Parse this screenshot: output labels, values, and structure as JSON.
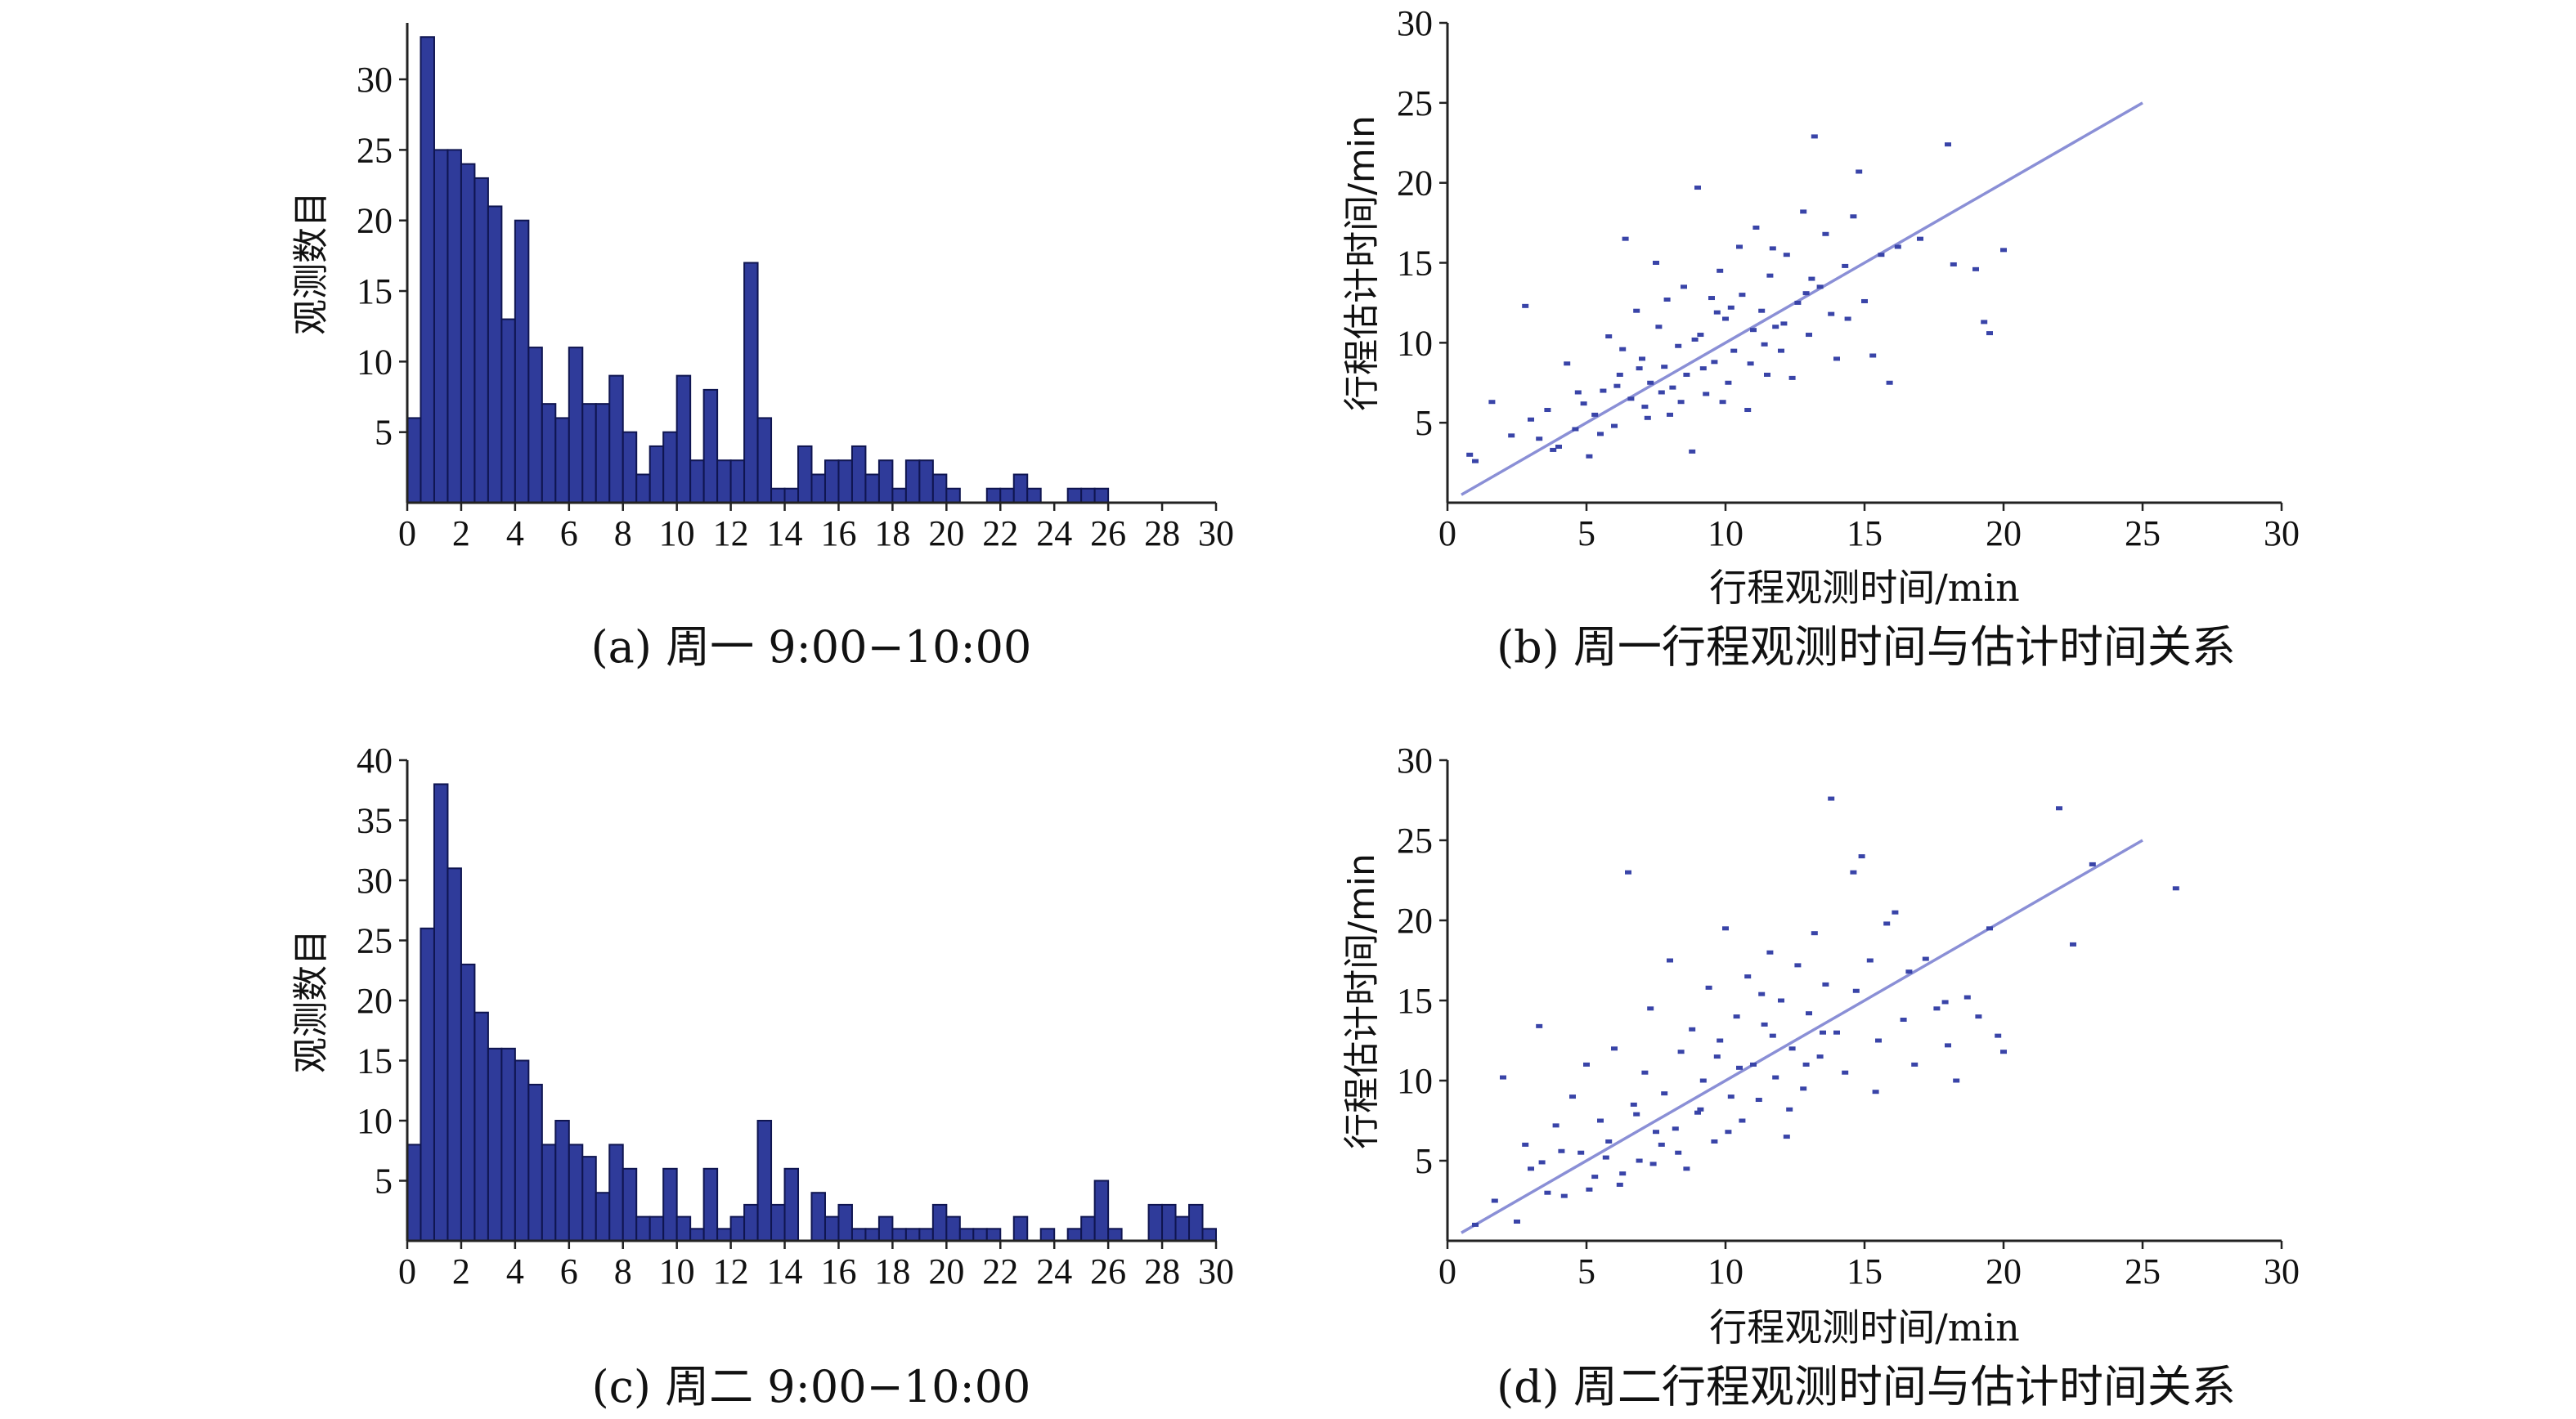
{
  "chart_data": [
    {
      "type": "bar",
      "id": "a",
      "caption": "(a) 周一 9:00−10:00",
      "ylabel": "观测数目",
      "xlabel": "",
      "xlim": [
        0,
        30
      ],
      "ylim": [
        0,
        34
      ],
      "xticks": [
        0,
        2,
        4,
        6,
        8,
        10,
        12,
        14,
        16,
        18,
        20,
        22,
        24,
        26,
        28,
        30
      ],
      "yticks": [
        5,
        10,
        15,
        20,
        25,
        30
      ],
      "bin_width": 0.5,
      "values": [
        6,
        33,
        25,
        25,
        24,
        23,
        21,
        13,
        20,
        11,
        7,
        6,
        11,
        7,
        7,
        9,
        5,
        2,
        4,
        5,
        9,
        3,
        8,
        3,
        3,
        17,
        6,
        1,
        1,
        4,
        2,
        3,
        3,
        4,
        2,
        3,
        1,
        3,
        3,
        2,
        1,
        0,
        0,
        1,
        1,
        2,
        1,
        0,
        0,
        1,
        1,
        1,
        0,
        0,
        0,
        0,
        0,
        0,
        0,
        0
      ]
    },
    {
      "type": "scatter",
      "id": "b",
      "caption": "(b) 周一行程观测时间与估计时间关系",
      "xlabel": "行程观测时间/min",
      "ylabel": "行程估计时间/min",
      "xlim": [
        0,
        30
      ],
      "ylim": [
        0,
        30
      ],
      "xticks": [
        0,
        5,
        10,
        15,
        20,
        25,
        30
      ],
      "yticks": [
        5,
        10,
        15,
        20,
        25,
        30
      ],
      "fit_line": [
        [
          0.5,
          0.5
        ],
        [
          25,
          25
        ]
      ],
      "points": [
        [
          0.8,
          3.0
        ],
        [
          1.0,
          2.6
        ],
        [
          1.6,
          6.3
        ],
        [
          2.3,
          4.2
        ],
        [
          2.8,
          12.3
        ],
        [
          3.0,
          5.2
        ],
        [
          3.3,
          4.0
        ],
        [
          3.6,
          5.8
        ],
        [
          4.0,
          3.5
        ],
        [
          4.3,
          8.7
        ],
        [
          4.6,
          4.6
        ],
        [
          4.9,
          6.2
        ],
        [
          5.1,
          2.9
        ],
        [
          5.3,
          5.5
        ],
        [
          5.6,
          7.0
        ],
        [
          5.8,
          10.4
        ],
        [
          6.0,
          4.8
        ],
        [
          6.2,
          8.0
        ],
        [
          6.4,
          16.5
        ],
        [
          6.6,
          6.5
        ],
        [
          6.8,
          12.0
        ],
        [
          7.0,
          9.0
        ],
        [
          7.1,
          6.0
        ],
        [
          7.3,
          7.5
        ],
        [
          7.5,
          15.0
        ],
        [
          7.6,
          11.0
        ],
        [
          7.8,
          8.5
        ],
        [
          8.0,
          5.5
        ],
        [
          8.1,
          7.2
        ],
        [
          8.3,
          9.8
        ],
        [
          8.5,
          13.5
        ],
        [
          8.6,
          8.0
        ],
        [
          8.8,
          3.2
        ],
        [
          9.0,
          19.7
        ],
        [
          9.1,
          10.5
        ],
        [
          9.3,
          6.8
        ],
        [
          9.5,
          12.8
        ],
        [
          9.6,
          8.8
        ],
        [
          9.8,
          14.5
        ],
        [
          10.0,
          11.5
        ],
        [
          10.1,
          7.5
        ],
        [
          10.3,
          9.5
        ],
        [
          10.5,
          16.0
        ],
        [
          10.6,
          13.0
        ],
        [
          10.8,
          5.8
        ],
        [
          11.0,
          10.8
        ],
        [
          11.1,
          17.2
        ],
        [
          11.3,
          12.0
        ],
        [
          11.5,
          8.0
        ],
        [
          11.6,
          14.2
        ],
        [
          11.8,
          11.0
        ],
        [
          12.0,
          9.5
        ],
        [
          12.2,
          15.5
        ],
        [
          12.4,
          7.8
        ],
        [
          12.6,
          12.5
        ],
        [
          12.8,
          18.2
        ],
        [
          13.0,
          10.5
        ],
        [
          13.2,
          22.9
        ],
        [
          13.4,
          13.5
        ],
        [
          13.6,
          16.8
        ],
        [
          13.8,
          11.8
        ],
        [
          14.0,
          9.0
        ],
        [
          14.3,
          14.8
        ],
        [
          14.6,
          17.9
        ],
        [
          14.8,
          20.7
        ],
        [
          15.0,
          12.6
        ],
        [
          15.3,
          9.2
        ],
        [
          15.6,
          15.5
        ],
        [
          15.9,
          7.5
        ],
        [
          16.2,
          16.0
        ],
        [
          17.0,
          16.5
        ],
        [
          18.0,
          22.4
        ],
        [
          18.2,
          14.9
        ],
        [
          19.0,
          14.6
        ],
        [
          19.3,
          11.3
        ],
        [
          19.5,
          10.6
        ],
        [
          20.0,
          15.8
        ],
        [
          6.1,
          7.3
        ],
        [
          7.2,
          5.3
        ],
        [
          8.4,
          6.3
        ],
        [
          9.2,
          8.4
        ],
        [
          10.2,
          12.2
        ],
        [
          11.4,
          9.9
        ],
        [
          12.1,
          11.2
        ],
        [
          13.1,
          14.0
        ],
        [
          6.9,
          8.4
        ],
        [
          7.7,
          6.9
        ],
        [
          8.9,
          10.2
        ],
        [
          9.7,
          11.9
        ],
        [
          10.9,
          8.7
        ],
        [
          5.5,
          4.3
        ],
        [
          4.7,
          6.9
        ],
        [
          3.8,
          3.3
        ],
        [
          6.3,
          9.6
        ],
        [
          7.9,
          12.7
        ],
        [
          9.9,
          6.3
        ],
        [
          11.7,
          15.9
        ],
        [
          12.9,
          13.1
        ],
        [
          14.4,
          11.5
        ]
      ]
    },
    {
      "type": "bar",
      "id": "c",
      "caption": "(c) 周二 9:00−10:00",
      "ylabel": "观测数目",
      "xlabel": "",
      "xlim": [
        0,
        30
      ],
      "ylim": [
        0,
        40
      ],
      "xticks": [
        0,
        2,
        4,
        6,
        8,
        10,
        12,
        14,
        16,
        18,
        20,
        22,
        24,
        26,
        28,
        30
      ],
      "yticks": [
        5,
        10,
        15,
        20,
        25,
        30,
        35,
        40
      ],
      "bin_width": 0.5,
      "values": [
        8,
        26,
        38,
        31,
        23,
        19,
        16,
        16,
        15,
        13,
        8,
        10,
        8,
        7,
        4,
        8,
        6,
        2,
        2,
        6,
        2,
        1,
        6,
        1,
        2,
        3,
        10,
        3,
        6,
        0,
        4,
        2,
        3,
        1,
        1,
        2,
        1,
        1,
        1,
        3,
        2,
        1,
        1,
        1,
        0,
        2,
        0,
        1,
        0,
        1,
        2,
        5,
        1,
        0,
        0,
        3,
        3,
        2,
        3,
        1
      ]
    },
    {
      "type": "scatter",
      "id": "d",
      "caption": "(d) 周二行程观测时间与估计时间关系",
      "xlabel": "行程观测时间/min",
      "ylabel": "行程估计时间/min",
      "xlim": [
        0,
        30
      ],
      "ylim": [
        0,
        30
      ],
      "xticks": [
        0,
        5,
        10,
        15,
        20,
        25,
        30
      ],
      "yticks": [
        5,
        10,
        15,
        20,
        25,
        30
      ],
      "fit_line": [
        [
          0.5,
          0.5
        ],
        [
          25,
          25
        ]
      ],
      "points": [
        [
          1.0,
          1.0
        ],
        [
          1.7,
          2.5
        ],
        [
          2.0,
          10.2
        ],
        [
          2.5,
          1.2
        ],
        [
          2.8,
          6.0
        ],
        [
          3.0,
          4.5
        ],
        [
          3.3,
          13.4
        ],
        [
          3.6,
          3.0
        ],
        [
          3.9,
          7.2
        ],
        [
          4.2,
          2.8
        ],
        [
          4.5,
          9.0
        ],
        [
          4.8,
          5.5
        ],
        [
          5.0,
          11.0
        ],
        [
          5.3,
          4.0
        ],
        [
          5.5,
          7.5
        ],
        [
          5.8,
          6.2
        ],
        [
          6.0,
          12.0
        ],
        [
          6.2,
          3.5
        ],
        [
          6.5,
          23.0
        ],
        [
          6.7,
          8.5
        ],
        [
          6.9,
          5.0
        ],
        [
          7.1,
          10.5
        ],
        [
          7.3,
          14.5
        ],
        [
          7.5,
          6.8
        ],
        [
          7.8,
          9.2
        ],
        [
          8.0,
          17.5
        ],
        [
          8.2,
          7.0
        ],
        [
          8.4,
          11.8
        ],
        [
          8.6,
          4.5
        ],
        [
          8.8,
          13.2
        ],
        [
          9.0,
          8.0
        ],
        [
          9.2,
          10.0
        ],
        [
          9.4,
          15.8
        ],
        [
          9.6,
          6.2
        ],
        [
          9.8,
          12.5
        ],
        [
          10.0,
          19.5
        ],
        [
          10.2,
          9.0
        ],
        [
          10.4,
          14.0
        ],
        [
          10.6,
          7.5
        ],
        [
          10.8,
          16.5
        ],
        [
          11.0,
          11.0
        ],
        [
          11.2,
          8.8
        ],
        [
          11.4,
          13.5
        ],
        [
          11.6,
          18.0
        ],
        [
          11.8,
          10.2
        ],
        [
          12.0,
          15.0
        ],
        [
          12.2,
          6.5
        ],
        [
          12.4,
          12.0
        ],
        [
          12.6,
          17.2
        ],
        [
          12.8,
          9.5
        ],
        [
          13.0,
          14.2
        ],
        [
          13.2,
          19.2
        ],
        [
          13.4,
          11.5
        ],
        [
          13.6,
          16.0
        ],
        [
          13.8,
          27.6
        ],
        [
          14.0,
          13.0
        ],
        [
          14.3,
          10.5
        ],
        [
          14.6,
          23.0
        ],
        [
          14.9,
          24.0
        ],
        [
          15.2,
          17.5
        ],
        [
          15.5,
          12.5
        ],
        [
          15.8,
          19.8
        ],
        [
          16.1,
          20.5
        ],
        [
          16.4,
          13.8
        ],
        [
          16.8,
          11.0
        ],
        [
          17.2,
          17.6
        ],
        [
          17.6,
          14.5
        ],
        [
          18.0,
          12.2
        ],
        [
          18.3,
          10.0
        ],
        [
          18.7,
          15.2
        ],
        [
          19.1,
          14.0
        ],
        [
          19.5,
          19.5
        ],
        [
          19.8,
          12.8
        ],
        [
          20.0,
          11.8
        ],
        [
          22.0,
          27.0
        ],
        [
          22.5,
          18.5
        ],
        [
          23.2,
          23.5
        ],
        [
          26.2,
          22.0
        ],
        [
          6.3,
          4.2
        ],
        [
          7.7,
          6.0
        ],
        [
          9.1,
          8.2
        ],
        [
          10.5,
          10.8
        ],
        [
          11.7,
          12.8
        ],
        [
          12.9,
          11.0
        ],
        [
          8.3,
          5.5
        ],
        [
          5.7,
          5.2
        ],
        [
          6.8,
          7.9
        ],
        [
          7.4,
          4.8
        ],
        [
          10.1,
          6.8
        ],
        [
          11.3,
          15.4
        ],
        [
          12.3,
          8.2
        ],
        [
          13.5,
          13.0
        ],
        [
          14.7,
          15.6
        ],
        [
          15.4,
          9.3
        ],
        [
          16.6,
          16.8
        ],
        [
          17.9,
          14.9
        ],
        [
          4.1,
          5.6
        ],
        [
          3.4,
          4.9
        ],
        [
          5.1,
          3.2
        ],
        [
          9.7,
          11.5
        ]
      ]
    }
  ]
}
